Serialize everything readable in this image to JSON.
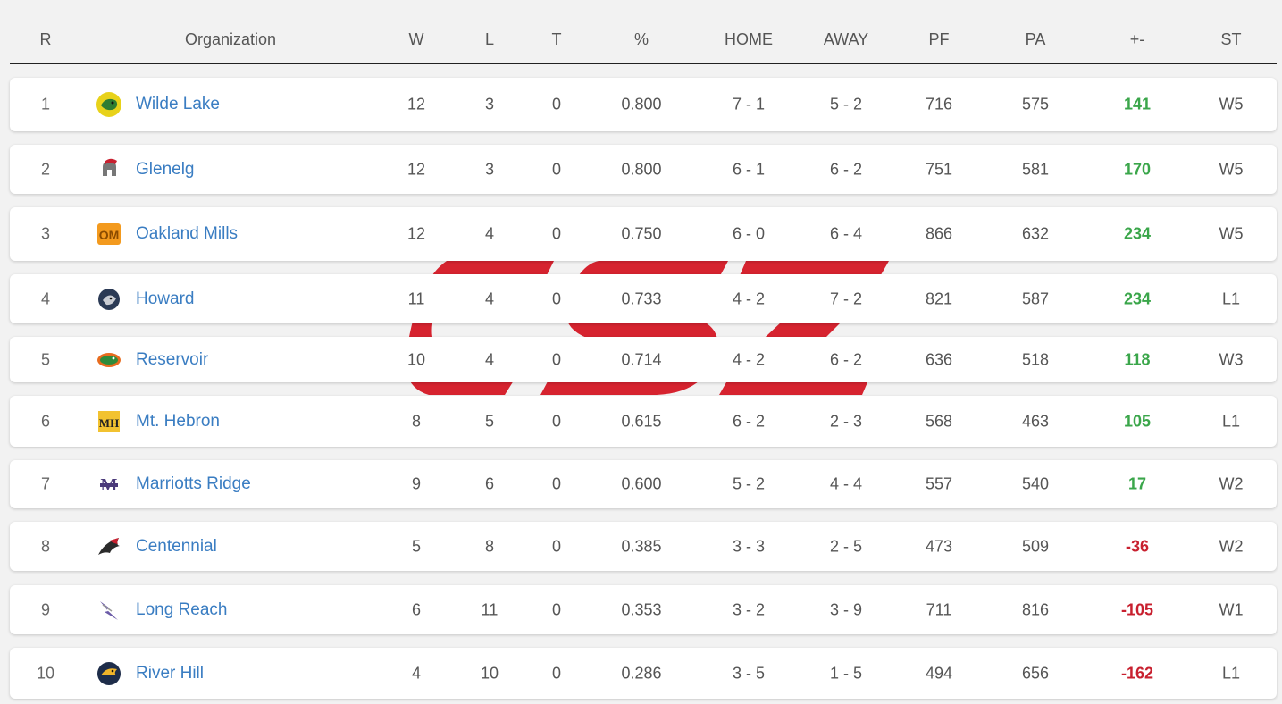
{
  "columns": {
    "rank": "R",
    "org": "Organization",
    "w": "W",
    "l": "L",
    "t": "T",
    "pct": "%",
    "home": "HOME",
    "away": "AWAY",
    "pf": "PF",
    "pa": "PA",
    "diff": "+-",
    "st": "ST"
  },
  "colors": {
    "positive": "#3aa64a",
    "negative": "#c8202f",
    "link": "#3a7dc2",
    "watermark": "#d6232f"
  },
  "teams": [
    {
      "rank": "1",
      "name": "Wilde Lake",
      "icon": "wildecat-icon",
      "w": "12",
      "l": "3",
      "t": "0",
      "pct": "0.800",
      "home": "7 - 1",
      "away": "5 - 2",
      "pf": "716",
      "pa": "575",
      "diff": "141",
      "st": "W5"
    },
    {
      "rank": "2",
      "name": "Glenelg",
      "icon": "gladiator-helmet-icon",
      "w": "12",
      "l": "3",
      "t": "0",
      "pct": "0.800",
      "home": "6 - 1",
      "away": "6 - 2",
      "pf": "751",
      "pa": "581",
      "diff": "170",
      "st": "W5"
    },
    {
      "rank": "3",
      "name": "Oakland Mills",
      "icon": "om-monogram-icon",
      "w": "12",
      "l": "4",
      "t": "0",
      "pct": "0.750",
      "home": "6 - 0",
      "away": "6 - 4",
      "pf": "866",
      "pa": "632",
      "diff": "234",
      "st": "W5"
    },
    {
      "rank": "4",
      "name": "Howard",
      "icon": "lion-head-icon",
      "w": "11",
      "l": "4",
      "t": "0",
      "pct": "0.733",
      "home": "4 - 2",
      "away": "7 - 2",
      "pf": "821",
      "pa": "587",
      "diff": "234",
      "st": "L1"
    },
    {
      "rank": "5",
      "name": "Reservoir",
      "icon": "gator-icon",
      "w": "10",
      "l": "4",
      "t": "0",
      "pct": "0.714",
      "home": "4 - 2",
      "away": "6 - 2",
      "pf": "636",
      "pa": "518",
      "diff": "118",
      "st": "W3"
    },
    {
      "rank": "6",
      "name": "Mt. Hebron",
      "icon": "mh-monogram-icon",
      "w": "8",
      "l": "5",
      "t": "0",
      "pct": "0.615",
      "home": "6 - 2",
      "away": "2 - 3",
      "pf": "568",
      "pa": "463",
      "diff": "105",
      "st": "L1"
    },
    {
      "rank": "7",
      "name": "Marriotts Ridge",
      "icon": "m-ridge-icon",
      "w": "9",
      "l": "6",
      "t": "0",
      "pct": "0.600",
      "home": "5 - 2",
      "away": "4 - 4",
      "pf": "557",
      "pa": "540",
      "diff": "17",
      "st": "W2"
    },
    {
      "rank": "8",
      "name": "Centennial",
      "icon": "eagle-icon",
      "w": "5",
      "l": "8",
      "t": "0",
      "pct": "0.385",
      "home": "3 - 3",
      "away": "2 - 5",
      "pf": "473",
      "pa": "509",
      "diff": "-36",
      "st": "W2"
    },
    {
      "rank": "9",
      "name": "Long Reach",
      "icon": "lightning-icon",
      "w": "6",
      "l": "11",
      "t": "0",
      "pct": "0.353",
      "home": "3 - 2",
      "away": "3 - 9",
      "pf": "711",
      "pa": "816",
      "diff": "-105",
      "st": "W1"
    },
    {
      "rank": "10",
      "name": "River Hill",
      "icon": "hawk-icon",
      "w": "4",
      "l": "10",
      "t": "0",
      "pct": "0.286",
      "home": "3 - 5",
      "away": "1 - 5",
      "pf": "494",
      "pa": "656",
      "diff": "-162",
      "st": "L1"
    }
  ]
}
